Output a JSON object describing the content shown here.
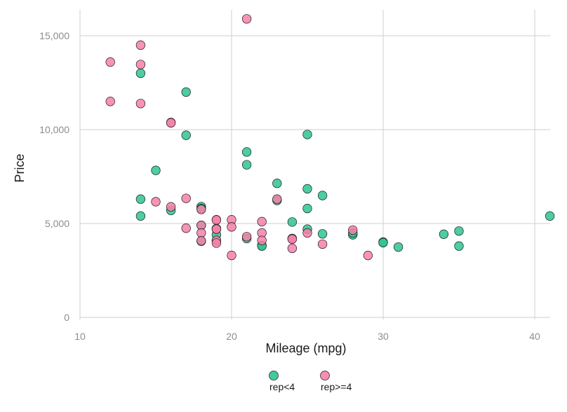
{
  "chart_data": {
    "type": "scatter",
    "xlabel": "Mileage (mpg)",
    "ylabel": "Price",
    "xlim": [
      10,
      42
    ],
    "ylim": [
      0,
      16000
    ],
    "xticks": [
      10,
      20,
      30,
      40
    ],
    "yticks": [
      0,
      5000,
      10000,
      15000
    ],
    "xtick_labels": [
      "10",
      "20",
      "30",
      "40"
    ],
    "ytick_labels": [
      "0",
      "5,000",
      "10,000",
      "15,000"
    ],
    "grid": true,
    "legend": "bottom",
    "series": [
      {
        "name": "rep<4",
        "color": "#2ec48f",
        "points": [
          [
            14,
            13000
          ],
          [
            14,
            6300
          ],
          [
            14,
            5400
          ],
          [
            15,
            7830
          ],
          [
            16,
            5700
          ],
          [
            17,
            12000
          ],
          [
            17,
            9700
          ],
          [
            18,
            5900
          ],
          [
            18,
            5800
          ],
          [
            18,
            4900
          ],
          [
            18,
            4060
          ],
          [
            19,
            4700
          ],
          [
            19,
            4400
          ],
          [
            19,
            4100
          ],
          [
            21,
            8810
          ],
          [
            21,
            8130
          ],
          [
            21,
            4200
          ],
          [
            22,
            3830
          ],
          [
            22,
            3800
          ],
          [
            23,
            7140
          ],
          [
            23,
            6230
          ],
          [
            24,
            5080
          ],
          [
            24,
            4200
          ],
          [
            25,
            9740
          ],
          [
            25,
            6850
          ],
          [
            25,
            5800
          ],
          [
            25,
            4700
          ],
          [
            26,
            6490
          ],
          [
            26,
            4450
          ],
          [
            28,
            4400
          ],
          [
            28,
            4500
          ],
          [
            30,
            4010
          ],
          [
            30,
            3980
          ],
          [
            31,
            3750
          ],
          [
            34,
            4430
          ],
          [
            35,
            4600
          ],
          [
            35,
            3800
          ],
          [
            41,
            5400
          ]
        ]
      },
      {
        "name": "rep>=4",
        "color": "#f77fab",
        "points": [
          [
            12,
            13600
          ],
          [
            12,
            11500
          ],
          [
            14,
            14500
          ],
          [
            14,
            13470
          ],
          [
            14,
            11390
          ],
          [
            15,
            6160
          ],
          [
            16,
            10380
          ],
          [
            16,
            10360
          ],
          [
            16,
            5890
          ],
          [
            17,
            6340
          ],
          [
            17,
            4750
          ],
          [
            18,
            5750
          ],
          [
            18,
            4900
          ],
          [
            18,
            4500
          ],
          [
            18,
            4080
          ],
          [
            19,
            5200
          ],
          [
            19,
            5190
          ],
          [
            19,
            4730
          ],
          [
            19,
            4700
          ],
          [
            19,
            4100
          ],
          [
            19,
            3960
          ],
          [
            20,
            5200
          ],
          [
            20,
            4820
          ],
          [
            20,
            3300
          ],
          [
            21,
            15900
          ],
          [
            21,
            4300
          ],
          [
            22,
            5100
          ],
          [
            22,
            4500
          ],
          [
            22,
            4100
          ],
          [
            23,
            6300
          ],
          [
            24,
            4190
          ],
          [
            24,
            4170
          ],
          [
            24,
            3680
          ],
          [
            25,
            4500
          ],
          [
            26,
            3900
          ],
          [
            28,
            4650
          ],
          [
            29,
            3300
          ]
        ]
      }
    ]
  }
}
